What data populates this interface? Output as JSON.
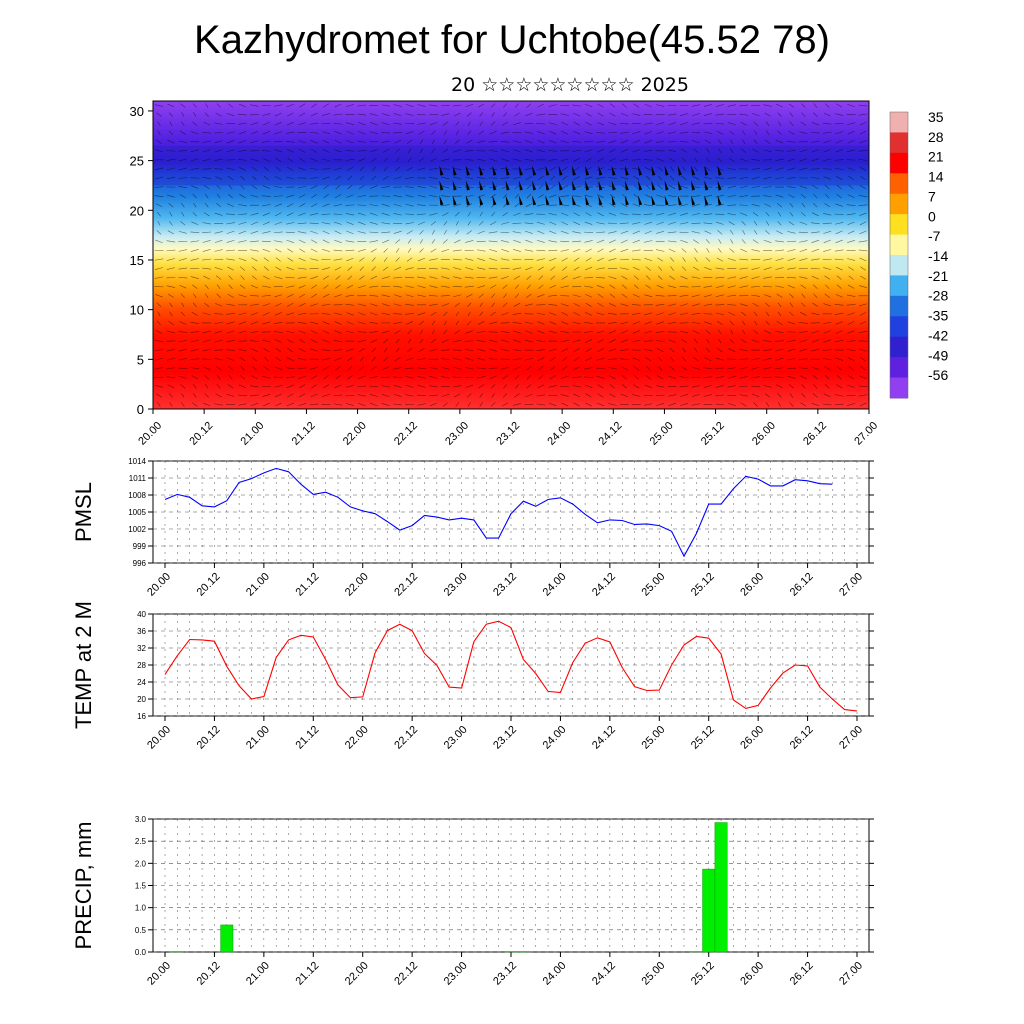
{
  "title": "Kazhydromet for Uchtobe(45.52 78)",
  "subtitle": "20 ☆☆☆☆☆☆☆☆☆ 2025",
  "time_ticks": [
    "20.00",
    "20.12",
    "21.00",
    "21.12",
    "22.00",
    "22.12",
    "23.00",
    "23.12",
    "24.00",
    "24.12",
    "25.00",
    "25.12",
    "26.00",
    "26.12",
    "27.00"
  ],
  "chart_data": [
    {
      "type": "heatmap",
      "title": "",
      "xlabel": "",
      "ylabel": "",
      "y_ticks": [
        "0",
        "5",
        "10",
        "15",
        "20",
        "25",
        "30"
      ],
      "ylim": [
        0,
        31
      ],
      "colorbar_labels": [
        "35",
        "28",
        "21",
        "14",
        "7",
        "0",
        "-7",
        "-14",
        "-21",
        "-28",
        "-35",
        "-42",
        "-49",
        "-56"
      ],
      "colorbar_colors": [
        "#f0b0b0",
        "#e03030",
        "#ff0000",
        "#ff6000",
        "#ffa000",
        "#ffe020",
        "#fff8a0",
        "#c0e8f0",
        "#40b0f0",
        "#2070e0",
        "#2040e0",
        "#3020d0",
        "#6020e0",
        "#9040f0"
      ],
      "overlay": "wind barbs"
    },
    {
      "type": "line",
      "title": "",
      "xlabel": "",
      "ylabel": "PMSL",
      "ylim": [
        996,
        1014
      ],
      "y_ticks": [
        "996",
        "999",
        "1002",
        "1005",
        "1008",
        "1011",
        "1014"
      ],
      "color": "#0000ff",
      "values": [
        1007.2,
        1008.1,
        1007.6,
        1006.1,
        1005.9,
        1007.0,
        1010.2,
        1010.9,
        1011.9,
        1012.7,
        1012.1,
        1009.9,
        1008.1,
        1008.5,
        1007.6,
        1005.9,
        1005.2,
        1004.7,
        1003.3,
        1001.8,
        1002.6,
        1004.4,
        1004.1,
        1003.6,
        1003.9,
        1003.6,
        1000.4,
        1000.4,
        1004.7,
        1006.9,
        1006.0,
        1007.2,
        1007.5,
        1006.4,
        1004.6,
        1003.1,
        1003.6,
        1003.5,
        1002.8,
        1002.9,
        1002.6,
        1001.6,
        997.2,
        1001.2,
        1006.4,
        1006.4,
        1009.1,
        1011.3,
        1010.8,
        1009.6,
        1009.6,
        1010.7,
        1010.5,
        1010.0,
        1009.9
      ],
      "x_start": 20.0,
      "x_step": 0.125
    },
    {
      "type": "line",
      "title": "",
      "xlabel": "",
      "ylabel": "TEMP at 2 M",
      "ylim": [
        16,
        40
      ],
      "y_ticks": [
        "16",
        "20",
        "24",
        "28",
        "32",
        "36",
        "40"
      ],
      "color": "#ff0000",
      "values": [
        25.8,
        30.2,
        34.0,
        33.9,
        33.6,
        27.7,
        23.1,
        20.0,
        20.6,
        29.8,
        33.9,
        35.0,
        34.6,
        29.3,
        23.3,
        20.3,
        20.5,
        30.9,
        36.1,
        37.6,
        36.1,
        30.7,
        27.9,
        22.8,
        22.6,
        33.5,
        37.6,
        38.3,
        36.8,
        29.3,
        26.0,
        21.8,
        21.5,
        28.6,
        33.1,
        34.4,
        33.4,
        27.4,
        22.9,
        22.0,
        22.1,
        28.0,
        32.7,
        34.7,
        34.3,
        30.6,
        19.8,
        17.8,
        18.5,
        22.6,
        26.1,
        28.0,
        27.8,
        22.8,
        20.0,
        17.5,
        17.2
      ],
      "x_start": 20.0,
      "x_step": 0.125
    },
    {
      "type": "bar",
      "title": "",
      "xlabel": "",
      "ylabel": "PRECIP, mm",
      "ylim": [
        0,
        3.0
      ],
      "y_ticks": [
        "0.0",
        "0.5",
        "1.0",
        "1.5",
        "2.0",
        "2.5",
        "3.0"
      ],
      "color": "#00ee00",
      "bars": [
        {
          "x": 20.125,
          "value": 0.01
        },
        {
          "x": 20.625,
          "value": 0.61
        },
        {
          "x": 23.5,
          "value": 0.01
        },
        {
          "x": 23.625,
          "value": 0.01
        },
        {
          "x": 25.375,
          "value": 0.01
        },
        {
          "x": 25.5,
          "value": 1.87
        },
        {
          "x": 25.625,
          "value": 2.92
        }
      ]
    }
  ]
}
